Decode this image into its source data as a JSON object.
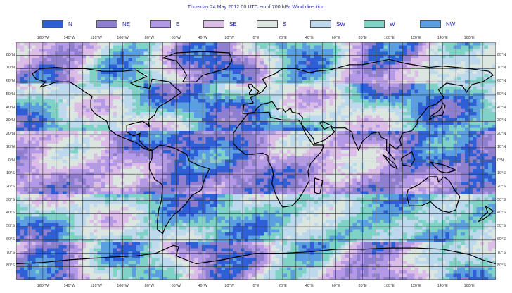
{
  "title": "Thursday 24 May 2012 00 UTC ecmf 700 hPa  Wind direction",
  "legend": [
    {
      "label": "N",
      "color": "#2f5fd6"
    },
    {
      "label": "NE",
      "color": "#8f7fcf"
    },
    {
      "label": "E",
      "color": "#b49ae6"
    },
    {
      "label": "SE",
      "color": "#dcbde8"
    },
    {
      "label": "S",
      "color": "#dce6e0"
    },
    {
      "label": "SW",
      "color": "#bcd9ee"
    },
    {
      "label": "W",
      "color": "#7fd3c6"
    },
    {
      "label": "NW",
      "color": "#5b9fe0"
    }
  ],
  "lon_labels": [
    "160°W",
    "140°W",
    "120°W",
    "100°W",
    "80°W",
    "60°W",
    "40°W",
    "20°W",
    "0°E",
    "20°E",
    "40°E",
    "60°E",
    "80°E",
    "100°E",
    "120°E",
    "140°E",
    "160°E"
  ],
  "lat_labels": [
    "80°N",
    "70°N",
    "60°N",
    "50°N",
    "40°N",
    "30°N",
    "20°N",
    "10°N",
    "0°N",
    "10°S",
    "20°S",
    "30°S",
    "40°S",
    "50°S",
    "60°S",
    "70°S",
    "80°S"
  ]
}
